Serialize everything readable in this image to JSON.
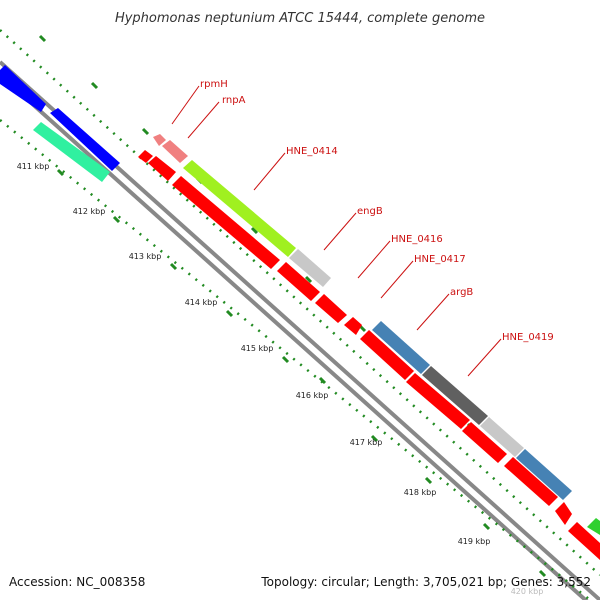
{
  "map": {
    "title": "Hyphomonas neptunium ATCC 15444, complete genome",
    "accession": "Accession: NC_008358",
    "summary": "Topology: circular; Length: 3,705,021 bp; Genes: 3,552",
    "ticks": [
      "411 kbp",
      "412 kbp",
      "413 kbp",
      "414 kbp",
      "415 kbp",
      "416 kbp",
      "417 kbp",
      "418 kbp",
      "419 kbp",
      "420 kbp"
    ],
    "genes": [
      {
        "label": "rpmH",
        "color": "#f08080"
      },
      {
        "label": "rnpA",
        "color": "#f08080"
      },
      {
        "label": "HNE_0414",
        "color": "#a0f020"
      },
      {
        "label": "engB",
        "color": "#c8c8c8"
      },
      {
        "label": "HNE_0416",
        "color": "#ff0000"
      },
      {
        "label": "HNE_0417",
        "color": "#ff0000"
      },
      {
        "label": "argB",
        "color": "#4682b4"
      },
      {
        "label": "HNE_0419",
        "color": "#606060"
      }
    ],
    "colors": {
      "cds": "#ff0000",
      "backbone": "#888888",
      "tick": "#228b22",
      "label": "#cc1111",
      "upstream_blue": "#0000ff",
      "upstream_teal": "#30f0a0",
      "edge_green": "#30d030"
    }
  }
}
